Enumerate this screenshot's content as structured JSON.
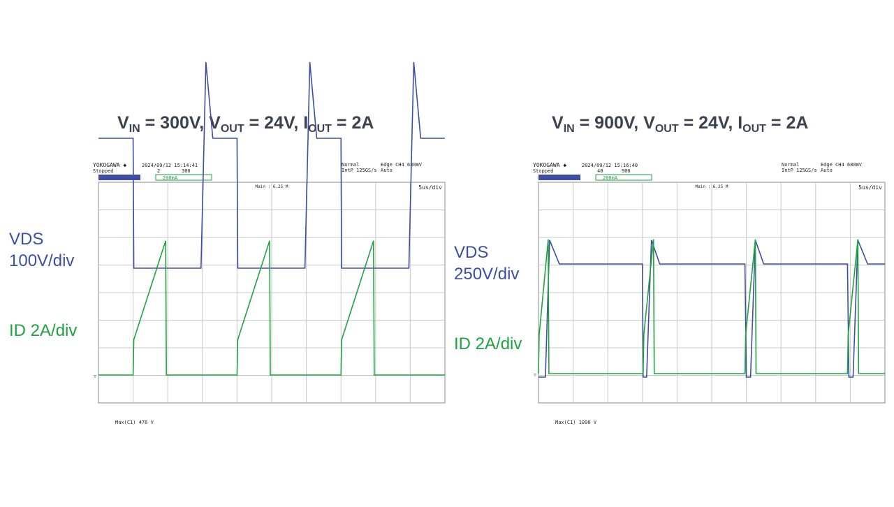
{
  "panels": [
    {
      "id": "left",
      "title": {
        "v": "V",
        "v_sub": "IN",
        "v_val": " = 300V, ",
        "vo": "V",
        "vo_sub": "OUT",
        "vo_val": " = 24V, ",
        "io": "I",
        "io_sub": "OUT",
        "io_val": " = 2A"
      },
      "vds_label": [
        "VDS",
        "100V/div"
      ],
      "id_label": "ID 2A/div",
      "header": {
        "brand": "YOKOGAWA ◆",
        "datetime": "2024/09/12  15:14:41",
        "status": "Stopped",
        "sub_a": "2",
        "sub_b": "300",
        "mode": "Normal",
        "rate": "IntP  125GS/s",
        "trigger": "Edge CH4  680mV",
        "trigger_mode": "Auto",
        "ch_tag": "200mA",
        "main_label": "Main : 6.25 M",
        "timebase": "5us/div",
        "measurement": "Max(C1)   476  V"
      }
    },
    {
      "id": "right",
      "title": {
        "v": "V",
        "v_sub": "IN",
        "v_val": " = 900V, ",
        "vo": "V",
        "vo_sub": "OUT",
        "vo_val": " = 24V, ",
        "io": "I",
        "io_sub": "OUT",
        "io_val": " = 2A"
      },
      "vds_label": [
        "VDS",
        "250V/div"
      ],
      "id_label": "ID 2A/div",
      "header": {
        "brand": "YOKOGAWA ◆",
        "datetime": "2024/09/12  15:16:40",
        "status": "Stopped",
        "sub_a": "40",
        "sub_b": "900",
        "mode": "Normal",
        "rate": "IntP  125GS/s",
        "trigger": "Edge CH4  680mV",
        "trigger_mode": "Auto",
        "ch_tag": "200mA",
        "main_label": "Main : 6.25 M",
        "timebase": "5us/div",
        "measurement": "Max(C1)   1090  V"
      }
    }
  ],
  "colors": {
    "vds": "#3f4ea3",
    "id": "#21a241",
    "grid": "#c8c8c8",
    "title": "#3b4352"
  },
  "chart_data": [
    {
      "type": "line",
      "title": "",
      "xlabel": "",
      "ylabel": "",
      "x_unit": "us",
      "time_per_div_us": 5,
      "divisions_x": 10,
      "divisions_y": 8,
      "grid": true,
      "series": [
        {
          "name": "VDS",
          "scale_per_div": "100V/div",
          "x": [
            0,
            5.0,
            5.1,
            14.8,
            15.5,
            16.5,
            20.0,
            20.1,
            29.8,
            30.5,
            31.5,
            35.0,
            35.1,
            44.8,
            45.5,
            46.5,
            50.0
          ],
          "y": [
            300,
            300,
            0,
            0,
            476,
            300,
            300,
            0,
            0,
            476,
            300,
            300,
            0,
            0,
            476,
            300,
            300
          ]
        },
        {
          "name": "ID",
          "scale_per_div": "2A/div",
          "x": [
            0,
            5.0,
            5.1,
            9.7,
            9.8,
            20.0,
            20.1,
            24.7,
            24.8,
            35.0,
            35.1,
            39.7,
            39.8,
            50.0
          ],
          "y": [
            0,
            0,
            2.0,
            7.6,
            0,
            0,
            2.0,
            7.6,
            0,
            0,
            2.0,
            7.6,
            0,
            0
          ]
        }
      ]
    },
    {
      "type": "line",
      "title": "",
      "xlabel": "",
      "ylabel": "",
      "x_unit": "us",
      "time_per_div_us": 5,
      "divisions_x": 10,
      "divisions_y": 8,
      "grid": true,
      "series": [
        {
          "name": "VDS",
          "scale_per_div": "250V/div",
          "x": [
            0,
            0.2,
            1.0,
            1.6,
            3.0,
            15.0,
            15.1,
            15.6,
            16.3,
            17.5,
            29.8,
            30.0,
            30.6,
            31.3,
            32.5,
            44.6,
            44.8,
            45.4,
            46.1,
            47.5,
            50.0
          ],
          "y": [
            0,
            0,
            0,
            1090,
            900,
            900,
            0,
            0,
            1090,
            900,
            900,
            0,
            0,
            1090,
            900,
            900,
            0,
            0,
            1090,
            900,
            900
          ]
        },
        {
          "name": "ID",
          "scale_per_div": "2A/div",
          "x": [
            0,
            0.1,
            1.4,
            1.5,
            15.1,
            15.2,
            16.6,
            16.7,
            29.8,
            29.9,
            31.3,
            31.4,
            44.6,
            44.7,
            46.1,
            46.2,
            50.0
          ],
          "y": [
            0,
            2.2,
            7.6,
            0,
            0,
            2.2,
            7.6,
            0,
            0,
            2.2,
            7.6,
            0,
            0,
            2.2,
            7.6,
            0,
            0
          ]
        }
      ]
    }
  ]
}
